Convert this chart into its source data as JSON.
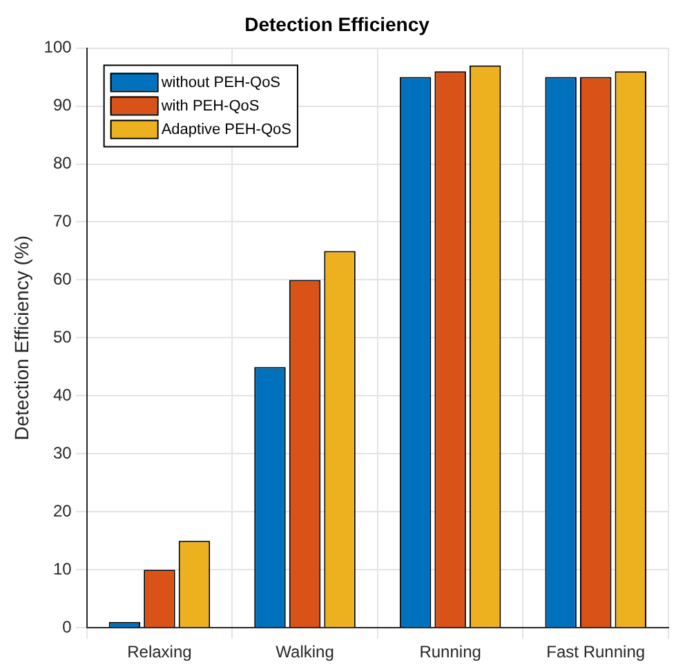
{
  "chart_data": {
    "type": "bar",
    "title": "Detection Efficiency",
    "ylabel": "Detection Efficiency (%)",
    "categories": [
      "Relaxing",
      "Walking",
      "Running",
      "Fast Running"
    ],
    "series": [
      {
        "name": "without PEH-QoS",
        "color": "#0072bd",
        "values": [
          1,
          45,
          95,
          95
        ]
      },
      {
        "name": "with PEH-QoS",
        "color": "#d95319",
        "values": [
          10,
          60,
          96,
          95
        ]
      },
      {
        "name": "Adaptive PEH-QoS",
        "color": "#edb120",
        "values": [
          15,
          65,
          97,
          96
        ]
      }
    ],
    "ylim": [
      0,
      100
    ],
    "yticks": [
      0,
      10,
      20,
      30,
      40,
      50,
      60,
      70,
      80,
      90,
      100
    ],
    "grid": true,
    "legend": "top left"
  }
}
